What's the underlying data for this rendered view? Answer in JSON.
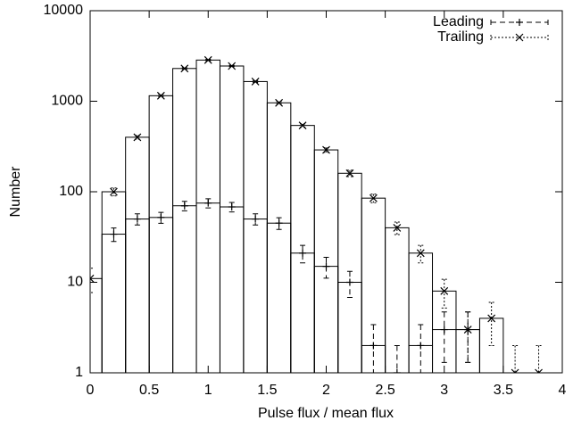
{
  "chart_data": {
    "type": "bar",
    "x_label": "Pulse flux / mean flux",
    "y_label": "Number",
    "x": [
      0,
      0.2,
      0.4,
      0.6,
      0.8,
      1.0,
      1.2,
      1.4,
      1.6,
      1.8,
      2.0,
      2.2,
      2.4,
      2.6,
      2.8,
      3.0,
      3.2,
      3.4,
      3.6,
      3.8
    ],
    "bin_width": 0.2,
    "series": [
      {
        "name": "Leading",
        "color": "#000000",
        "marker": "plus",
        "dash": "6,4",
        "values": [
          null,
          34,
          50,
          52,
          70,
          75,
          68,
          50,
          45,
          21,
          15,
          10,
          2,
          1,
          2,
          3,
          3,
          null,
          null,
          null
        ],
        "errors": [
          null,
          5.8,
          7,
          7.2,
          8.4,
          8.7,
          8.2,
          7,
          6.7,
          4.6,
          3.9,
          3.2,
          1.4,
          1,
          1.4,
          1.7,
          1.7,
          null,
          null,
          null
        ]
      },
      {
        "name": "Trailing",
        "color": "#000000",
        "marker": "cross",
        "dash": "2,2",
        "values": [
          11,
          100,
          400,
          1150,
          2300,
          2850,
          2450,
          1650,
          960,
          540,
          290,
          160,
          85,
          40,
          21,
          8,
          3,
          4,
          1,
          1
        ],
        "errors": [
          3.3,
          10,
          20,
          34,
          48,
          53,
          49,
          41,
          31,
          23,
          17,
          13,
          9.2,
          6.3,
          4.6,
          2.8,
          1.7,
          2,
          1,
          1
        ]
      }
    ],
    "xlim": [
      0,
      4
    ],
    "xticks": [
      0,
      0.5,
      1,
      1.5,
      2,
      2.5,
      3,
      3.5,
      4
    ],
    "ylim": [
      1,
      10000
    ],
    "yticks": [
      1,
      10,
      100,
      1000,
      10000
    ],
    "log_y": true,
    "legend": "top-right"
  }
}
